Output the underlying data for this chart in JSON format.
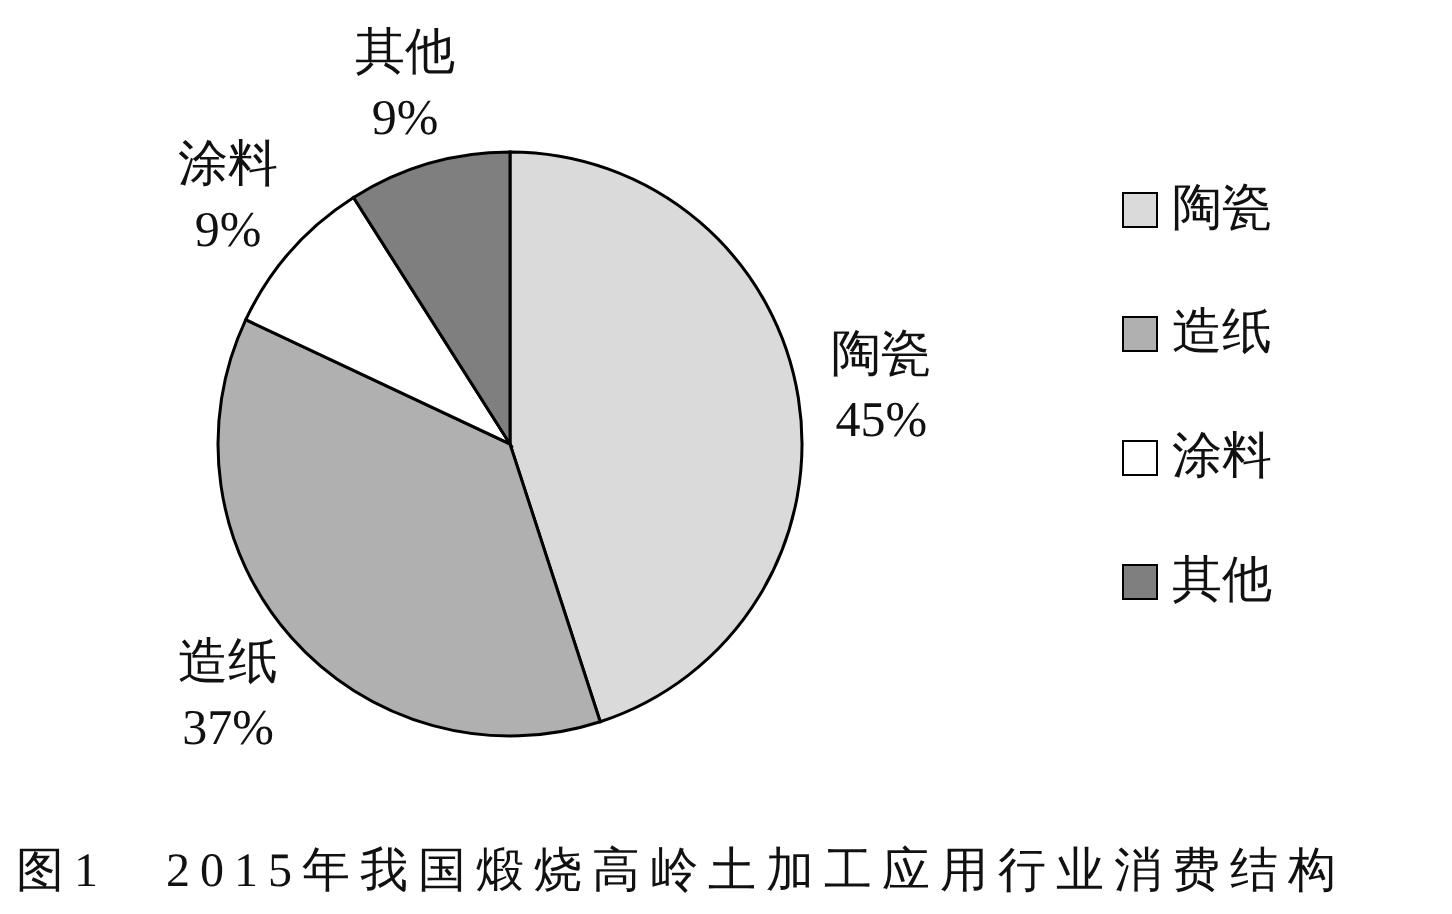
{
  "chart_data": {
    "type": "pie",
    "title": "图1　2015年我国煅烧高岭土加工应用行业消费结构",
    "categories": [
      "陶瓷",
      "造纸",
      "涂料",
      "其他"
    ],
    "values": [
      45,
      37,
      9,
      9
    ],
    "colors": [
      "#dadada",
      "#b0b0b0",
      "#ffffff",
      "#7f7f7f"
    ],
    "value_labels": [
      "45%",
      "37%",
      "9%",
      "9%"
    ],
    "legend": "right"
  }
}
